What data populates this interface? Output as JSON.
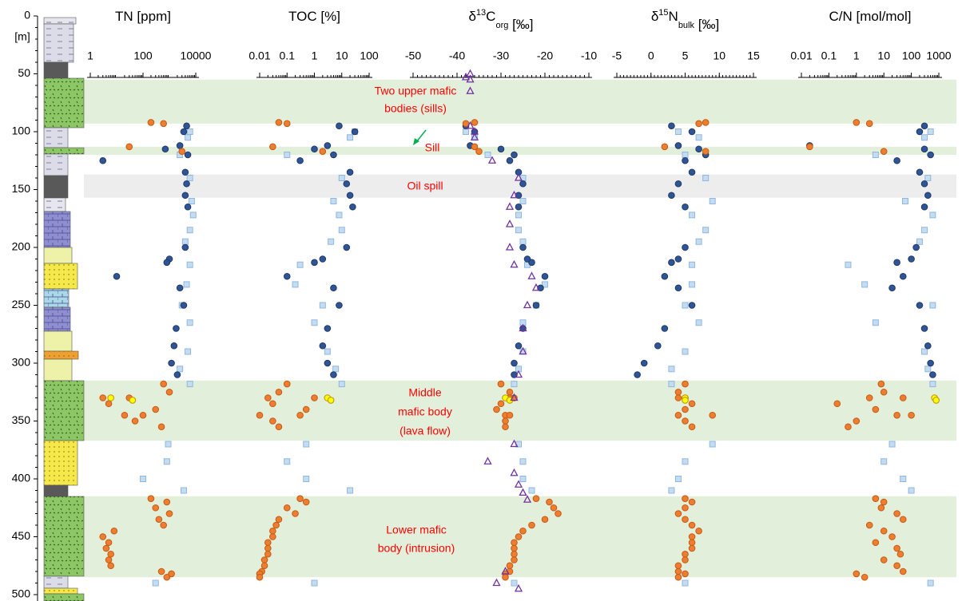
{
  "depth_axis": {
    "label": "[m]",
    "lim": [
      0,
      500
    ],
    "ticks": [
      0,
      50,
      100,
      150,
      200,
      250,
      300,
      350,
      400,
      450,
      500
    ]
  },
  "bands": [
    {
      "range": [
        55,
        93
      ],
      "color": "#e2efda"
    },
    {
      "range": [
        113,
        120
      ],
      "color": "#e2efda"
    },
    {
      "range": [
        137,
        157
      ],
      "color": "#ededed"
    },
    {
      "range": [
        315,
        367
      ],
      "color": "#e2efda"
    },
    {
      "range": [
        415,
        485
      ],
      "color": "#e2efda"
    }
  ],
  "annotations": [
    [
      "Two upper mafic",
      "bodies (sills)"
    ],
    [
      "Sill"
    ],
    [
      "Oil spill"
    ],
    [
      "Middle",
      "mafic body",
      "(lava flow)"
    ],
    [
      "Lower mafic",
      "body (intrusion)"
    ]
  ],
  "chart_data": [
    {
      "type": "scatter",
      "title": [
        "TN [ppm]"
      ],
      "log_x": true,
      "xlim": [
        1,
        10000
      ],
      "xticks": [
        1,
        100,
        10000
      ],
      "series": [
        {
          "marker": "square",
          "color": "#c5dcf0",
          "edge": "#8fb8e0",
          "y": [
            100,
            105,
            120,
            140,
            160,
            172,
            185,
            195,
            215,
            232,
            250,
            265,
            290,
            305,
            318,
            370,
            385,
            400,
            410,
            490
          ],
          "x": [
            6000,
            5000,
            2500,
            6000,
            7000,
            8000,
            6000,
            4000,
            6000,
            4500,
            3000,
            6000,
            5000,
            2500,
            6000,
            900,
            800,
            100,
            3500,
            300
          ]
        },
        {
          "marker": "circle",
          "color": "#2f5597",
          "edge": "#1f3864",
          "y": [
            95,
            100,
            112,
            115,
            120,
            125,
            135,
            145,
            155,
            165,
            200,
            210,
            213,
            225,
            235,
            250,
            270,
            285,
            300,
            310
          ],
          "x": [
            4500,
            3500,
            2500,
            700,
            5000,
            3,
            4000,
            4500,
            4000,
            5000,
            4000,
            1000,
            800,
            10,
            2500,
            3500,
            1800,
            1500,
            1200,
            2000
          ]
        },
        {
          "marker": "circle",
          "color": "#ed7d31",
          "edge": "#c55a11",
          "y": [
            92,
            93,
            113,
            117,
            318,
            325,
            330,
            335,
            340,
            345,
            350,
            355,
            330,
            345,
            417,
            420,
            425,
            430,
            435,
            440,
            445,
            450,
            455,
            460,
            465,
            470,
            475,
            480,
            482,
            485
          ],
          "x": [
            200,
            600,
            30,
            3000,
            600,
            1000,
            3,
            5,
            300,
            100,
            50,
            500,
            30,
            20,
            200,
            800,
            300,
            1000,
            400,
            600,
            8,
            3,
            5,
            4,
            6,
            5,
            6,
            500,
            1200,
            800
          ]
        },
        {
          "marker": "circle",
          "color": "#ffff00",
          "edge": "#bf9000",
          "y": [
            330,
            332
          ],
          "x": [
            6,
            40
          ]
        }
      ]
    },
    {
      "type": "scatter",
      "title": [
        "TOC [%]"
      ],
      "log_x": true,
      "xlim": [
        0.01,
        100
      ],
      "xticks": [
        0.01,
        0.1,
        1,
        10,
        100
      ],
      "series": [
        {
          "marker": "square",
          "color": "#c5dcf0",
          "edge": "#8fb8e0",
          "y": [
            100,
            105,
            120,
            140,
            160,
            172,
            185,
            195,
            215,
            232,
            250,
            265,
            290,
            305,
            318,
            370,
            385,
            400,
            410,
            490
          ],
          "x": [
            30,
            20,
            0.1,
            10,
            5,
            8,
            10,
            4,
            0.3,
            0.2,
            2,
            1,
            3,
            6,
            10,
            0.5,
            0.1,
            0.5,
            20,
            1
          ]
        },
        {
          "marker": "circle",
          "color": "#2f5597",
          "edge": "#1f3864",
          "y": [
            95,
            100,
            112,
            115,
            120,
            125,
            135,
            145,
            155,
            165,
            200,
            210,
            213,
            225,
            235,
            250,
            270,
            285,
            300,
            310
          ],
          "x": [
            8,
            30,
            3,
            1,
            5,
            0.3,
            20,
            15,
            20,
            25,
            15,
            2,
            1,
            0.1,
            5,
            8,
            3,
            2,
            3,
            5
          ]
        },
        {
          "marker": "circle",
          "color": "#ed7d31",
          "edge": "#c55a11",
          "y": [
            92,
            93,
            113,
            117,
            318,
            325,
            330,
            335,
            340,
            345,
            350,
            355,
            330,
            345,
            417,
            420,
            425,
            430,
            435,
            440,
            445,
            450,
            455,
            460,
            465,
            470,
            475,
            480,
            482,
            485
          ],
          "x": [
            0.05,
            0.1,
            0.03,
            2,
            0.1,
            0.05,
            0.02,
            0.03,
            0.5,
            0.3,
            0.03,
            0.05,
            1,
            0.01,
            0.3,
            0.5,
            0.1,
            0.2,
            0.05,
            0.04,
            0.03,
            0.03,
            0.02,
            0.02,
            0.02,
            0.015,
            0.015,
            0.012,
            0.01,
            0.01
          ]
        },
        {
          "marker": "circle",
          "color": "#ffff00",
          "edge": "#bf9000",
          "y": [
            330,
            332
          ],
          "x": [
            3,
            4
          ]
        }
      ]
    },
    {
      "type": "scatter",
      "title": [
        "δ",
        {
          "sup": "13"
        },
        "C",
        {
          "sub": "org"
        },
        " [‰]"
      ],
      "log_x": false,
      "xlim": [
        -50,
        -10
      ],
      "xticks": [
        -50,
        -40,
        -30,
        -20,
        -10
      ],
      "series": [
        {
          "marker": "square",
          "color": "#c5dcf0",
          "edge": "#8fb8e0",
          "y": [
            100,
            105,
            120,
            140,
            160,
            172,
            185,
            195,
            215,
            232,
            250,
            265,
            290,
            305,
            318,
            370,
            385,
            400,
            410,
            490
          ],
          "x": [
            -38,
            -36,
            -33,
            -25,
            -25,
            -26,
            -26,
            -25,
            -24,
            -20,
            -22,
            -25,
            -25,
            -26,
            -27,
            -26,
            -25,
            -25,
            -23,
            -27
          ]
        },
        {
          "marker": "circle",
          "color": "#2f5597",
          "edge": "#1f3864",
          "y": [
            95,
            100,
            112,
            115,
            120,
            125,
            135,
            145,
            155,
            165,
            200,
            210,
            213,
            225,
            235,
            250,
            270,
            285,
            300,
            310
          ],
          "x": [
            -38,
            -36,
            -37,
            -30,
            -27,
            -28,
            -26,
            -25,
            -26,
            -26,
            -25,
            -24,
            -23,
            -20,
            -21,
            -22,
            -25,
            -26,
            -27,
            -27
          ]
        },
        {
          "marker": "circle",
          "color": "#ed7d31",
          "edge": "#c55a11",
          "y": [
            92,
            93,
            113,
            117,
            318,
            325,
            330,
            335,
            340,
            345,
            350,
            355,
            330,
            345,
            417,
            420,
            425,
            430,
            435,
            440,
            445,
            450,
            455,
            460,
            465,
            470,
            475,
            480,
            482,
            485
          ],
          "x": [
            -36,
            -38,
            -36,
            -35,
            -30,
            -28,
            -28,
            -30,
            -31,
            -29,
            -29,
            -29,
            -27,
            -28,
            -22,
            -19,
            -18,
            -17,
            -20,
            -23,
            -25,
            -26,
            -27,
            -27,
            -27,
            -27,
            -28,
            -28,
            -29,
            -29
          ]
        },
        {
          "marker": "circle",
          "color": "#ffff00",
          "edge": "#bf9000",
          "y": [
            330,
            332
          ],
          "x": [
            -29,
            -28
          ]
        },
        {
          "marker": "triangle",
          "color": "none",
          "edge": "#7030a0",
          "y": [
            50,
            53,
            55,
            65,
            95,
            100,
            105,
            125,
            140,
            155,
            165,
            180,
            200,
            215,
            225,
            235,
            250,
            270,
            290,
            310,
            330,
            370,
            385,
            395,
            405,
            412,
            418,
            480,
            490,
            495
          ],
          "x": [
            -37,
            -38,
            -37,
            -37,
            -37,
            -36,
            -36,
            -32,
            -26,
            -27,
            -28,
            -28,
            -28,
            -27,
            -23,
            -22,
            -24,
            -25,
            -25,
            -26,
            -27,
            -27,
            -33,
            -27,
            -26,
            -25,
            -24,
            -29,
            -31,
            -26
          ]
        }
      ]
    },
    {
      "type": "scatter",
      "title": [
        "δ",
        {
          "sup": "15"
        },
        "N",
        {
          "sub": "bulk"
        },
        " [‰]"
      ],
      "log_x": false,
      "xlim": [
        -5,
        15
      ],
      "xticks": [
        -5,
        0,
        5,
        10,
        15
      ],
      "series": [
        {
          "marker": "square",
          "color": "#c5dcf0",
          "edge": "#8fb8e0",
          "y": [
            100,
            105,
            120,
            140,
            160,
            172,
            185,
            195,
            215,
            232,
            250,
            265,
            290,
            305,
            318,
            370,
            385,
            400,
            410,
            490
          ],
          "x": [
            4,
            7,
            5,
            8,
            9,
            6,
            8,
            7,
            6,
            6,
            5,
            7,
            5,
            3,
            3,
            9,
            5,
            4,
            3,
            5
          ]
        },
        {
          "marker": "circle",
          "color": "#2f5597",
          "edge": "#1f3864",
          "y": [
            95,
            100,
            112,
            115,
            120,
            125,
            135,
            145,
            155,
            165,
            200,
            210,
            213,
            225,
            235,
            250,
            270,
            285,
            300,
            310
          ],
          "x": [
            3,
            6,
            4,
            7,
            8,
            5,
            6,
            4,
            3,
            5,
            5,
            4,
            3,
            2,
            4,
            6,
            2,
            1,
            -1,
            -2
          ]
        },
        {
          "marker": "circle",
          "color": "#ed7d31",
          "edge": "#c55a11",
          "y": [
            92,
            93,
            113,
            117,
            318,
            325,
            330,
            335,
            340,
            345,
            350,
            355,
            330,
            345,
            417,
            420,
            425,
            430,
            435,
            440,
            445,
            450,
            455,
            460,
            465,
            470,
            475,
            480,
            482,
            485
          ],
          "x": [
            8,
            7,
            2,
            8,
            5,
            4,
            5,
            6,
            5,
            4,
            5,
            6,
            4,
            9,
            5,
            6,
            5,
            4,
            5,
            6,
            7,
            6,
            6,
            6,
            5,
            5,
            4,
            4,
            5,
            4
          ]
        },
        {
          "marker": "circle",
          "color": "#ffff00",
          "edge": "#bf9000",
          "y": [
            330,
            332
          ],
          "x": [
            5,
            5
          ]
        }
      ]
    },
    {
      "type": "scatter",
      "title": [
        "C/N [mol/mol]"
      ],
      "log_x": true,
      "xlim": [
        0.01,
        1000
      ],
      "xticks": [
        0.01,
        0.1,
        1,
        10,
        100,
        1000
      ],
      "series": [
        {
          "marker": "square",
          "color": "#c5dcf0",
          "edge": "#8fb8e0",
          "y": [
            100,
            105,
            120,
            140,
            160,
            172,
            185,
            195,
            215,
            232,
            250,
            265,
            290,
            305,
            318,
            370,
            385,
            400,
            410,
            490
          ],
          "x": [
            500,
            300,
            5,
            400,
            60,
            600,
            300,
            200,
            0.5,
            2,
            600,
            5,
            300,
            400,
            600,
            20,
            10,
            50,
            100,
            500
          ]
        },
        {
          "marker": "circle",
          "color": "#2f5597",
          "edge": "#1f3864",
          "y": [
            95,
            100,
            112,
            115,
            120,
            125,
            135,
            145,
            155,
            165,
            200,
            210,
            213,
            225,
            235,
            250,
            270,
            285,
            300,
            310
          ],
          "x": [
            300,
            200,
            0.02,
            300,
            500,
            30,
            200,
            300,
            400,
            300,
            150,
            100,
            30,
            50,
            20,
            200,
            300,
            400,
            500,
            600
          ]
        },
        {
          "marker": "circle",
          "color": "#ed7d31",
          "edge": "#c55a11",
          "y": [
            92,
            93,
            113,
            117,
            318,
            325,
            330,
            335,
            340,
            345,
            350,
            355,
            330,
            345,
            417,
            420,
            425,
            430,
            435,
            440,
            445,
            450,
            455,
            460,
            465,
            470,
            475,
            480,
            482,
            485
          ],
          "x": [
            1,
            3,
            0.02,
            10,
            8,
            10,
            3,
            0.2,
            5,
            30,
            1,
            0.5,
            50,
            100,
            5,
            10,
            8,
            30,
            50,
            3,
            10,
            20,
            5,
            30,
            40,
            10,
            30,
            50,
            1,
            2
          ]
        },
        {
          "marker": "circle",
          "color": "#ffff00",
          "edge": "#bf9000",
          "y": [
            330,
            332
          ],
          "x": [
            700,
            800
          ]
        }
      ]
    }
  ]
}
